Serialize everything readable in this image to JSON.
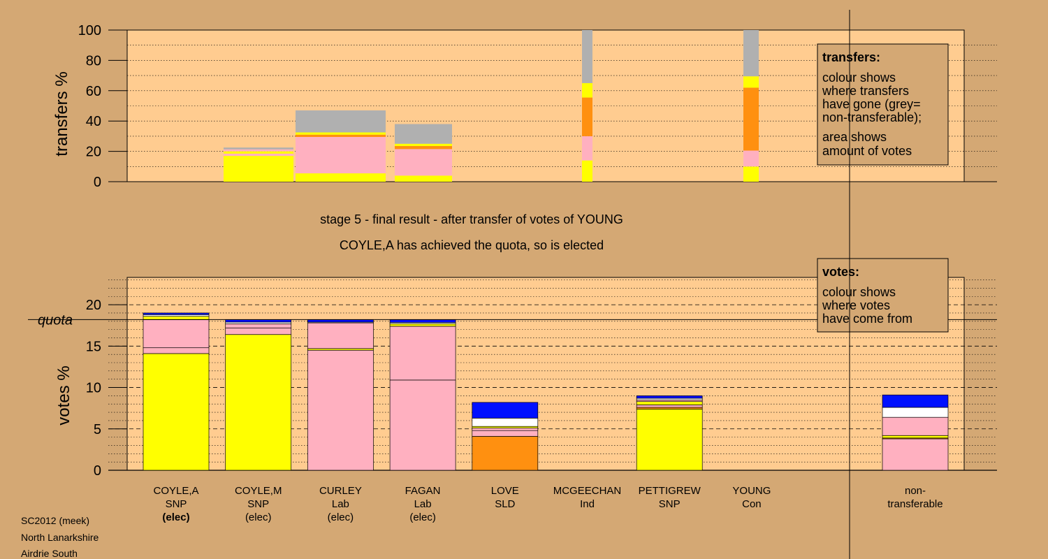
{
  "colors": {
    "background": "#d4a874",
    "plot_background": "#ffcc90",
    "SNP": "#ffff00",
    "Lab": "#ffb0c0",
    "SLD": "#ff9010",
    "Ind": "#ffffff",
    "Con": "#0010ff",
    "non_transferable": "#b0b0b0"
  },
  "caption": {
    "stage_line": "stage 5 - final result - after transfer of votes of YOUNG",
    "result_line": "COYLE,A has achieved the quota, so is elected"
  },
  "footer": {
    "line1": "SC2012 (meek)",
    "line2": "North Lanarkshire",
    "line3": "Airdrie South"
  },
  "legend_transfers": {
    "title": "transfers:",
    "lines": [
      "colour shows",
      "where transfers",
      "have gone (grey=",
      "non-transferable);",
      "area shows",
      "amount of votes"
    ]
  },
  "legend_votes": {
    "title": "votes:",
    "lines": [
      "colour shows",
      "where votes",
      "have come from"
    ]
  },
  "quota_label": "quota",
  "chart_data": [
    {
      "type": "bar",
      "subtype": "stacked-variable-width",
      "name": "transfers",
      "ylabel": "transfers %",
      "ylim": [
        0,
        100
      ],
      "yticks": [
        0,
        20,
        40,
        60,
        80,
        100
      ],
      "grid": true,
      "bars": [
        {
          "source": "COYLE,M",
          "segments": [
            {
              "party": "SNP",
              "from": 0,
              "to": 17
            },
            {
              "party": "Lab",
              "from": 17,
              "to": 18.5
            },
            {
              "party": "SNP",
              "from": 18.5,
              "to": 20
            },
            {
              "party": "Lab",
              "from": 20,
              "to": 21.3
            },
            {
              "party": "non_transferable",
              "from": 21.3,
              "to": 22.5
            }
          ]
        },
        {
          "source": "CURLEY",
          "segments": [
            {
              "party": "SNP",
              "from": 0,
              "to": 5.5
            },
            {
              "party": "Lab",
              "from": 5.5,
              "to": 29.5
            },
            {
              "party": "SLD",
              "from": 29.5,
              "to": 31
            },
            {
              "party": "SNP",
              "from": 31,
              "to": 32.5
            },
            {
              "party": "non_transferable",
              "from": 32.5,
              "to": 47
            }
          ]
        },
        {
          "source": "FAGAN",
          "segments": [
            {
              "party": "SNP",
              "from": 0,
              "to": 4
            },
            {
              "party": "Lab",
              "from": 4,
              "to": 21.5
            },
            {
              "party": "SLD",
              "from": 21.5,
              "to": 23.5
            },
            {
              "party": "SNP",
              "from": 23.5,
              "to": 25
            },
            {
              "party": "non_transferable",
              "from": 25,
              "to": 38
            }
          ]
        },
        {
          "source": "MCGEECHAN",
          "segments": [
            {
              "party": "SNP",
              "from": 0,
              "to": 14
            },
            {
              "party": "Lab",
              "from": 14,
              "to": 30
            },
            {
              "party": "SLD",
              "from": 30,
              "to": 55.5
            },
            {
              "party": "SNP",
              "from": 55.5,
              "to": 65
            },
            {
              "party": "non_transferable",
              "from": 65,
              "to": 100
            }
          ]
        },
        {
          "source": "YOUNG",
          "segments": [
            {
              "party": "SNP",
              "from": 0,
              "to": 10
            },
            {
              "party": "Lab",
              "from": 10,
              "to": 20.5
            },
            {
              "party": "SLD",
              "from": 20.5,
              "to": 62
            },
            {
              "party": "SNP",
              "from": 62,
              "to": 69.5
            },
            {
              "party": "non_transferable",
              "from": 69.5,
              "to": 100
            }
          ]
        }
      ]
    },
    {
      "type": "bar",
      "subtype": "stacked",
      "name": "votes",
      "ylabel": "votes %",
      "ylim": [
        0,
        23.3
      ],
      "yticks": [
        0,
        5,
        10,
        15,
        20
      ],
      "quota": 18.2,
      "grid": true,
      "candidates": [
        {
          "name": "COYLE,A",
          "party": "SNP",
          "status": "(elec)",
          "status_bold": true,
          "segments": [
            {
              "party": "SNP",
              "from": 0,
              "to": 14.1
            },
            {
              "party": "Lab",
              "from": 14.1,
              "to": 14.8
            },
            {
              "party": "Lab",
              "from": 14.8,
              "to": 18.2
            },
            {
              "party": "SNP",
              "from": 18.2,
              "to": 18.6
            },
            {
              "party": "Ind",
              "from": 18.6,
              "to": 18.8
            },
            {
              "party": "Con",
              "from": 18.8,
              "to": 19.0
            }
          ]
        },
        {
          "name": "COYLE,M",
          "party": "SNP",
          "status": "(elec)",
          "status_bold": false,
          "segments": [
            {
              "party": "SNP",
              "from": 0,
              "to": 16.4
            },
            {
              "party": "Lab",
              "from": 16.4,
              "to": 17.2
            },
            {
              "party": "Lab",
              "from": 17.2,
              "to": 17.7
            },
            {
              "party": "Ind",
              "from": 17.7,
              "to": 17.9
            },
            {
              "party": "Con",
              "from": 17.9,
              "to": 18.2
            }
          ]
        },
        {
          "name": "CURLEY",
          "party": "Lab",
          "status": "(elec)",
          "status_bold": false,
          "segments": [
            {
              "party": "Lab",
              "from": 0,
              "to": 14.5
            },
            {
              "party": "SNP",
              "from": 14.5,
              "to": 14.7
            },
            {
              "party": "Lab",
              "from": 14.7,
              "to": 17.8
            },
            {
              "party": "Ind",
              "from": 17.8,
              "to": 17.9
            },
            {
              "party": "Con",
              "from": 17.9,
              "to": 18.2
            }
          ]
        },
        {
          "name": "FAGAN",
          "party": "Lab",
          "status": "(elec)",
          "status_bold": false,
          "segments": [
            {
              "party": "Lab",
              "from": 0,
              "to": 10.9
            },
            {
              "party": "Lab",
              "from": 10.9,
              "to": 17.4
            },
            {
              "party": "SNP",
              "from": 17.4,
              "to": 17.7
            },
            {
              "party": "Ind",
              "from": 17.7,
              "to": 17.85
            },
            {
              "party": "Con",
              "from": 17.85,
              "to": 18.2
            }
          ]
        },
        {
          "name": "LOVE",
          "party": "SLD",
          "status": "",
          "status_bold": false,
          "segments": [
            {
              "party": "SLD",
              "from": 0,
              "to": 4.1
            },
            {
              "party": "Lab",
              "from": 4.1,
              "to": 4.8
            },
            {
              "party": "Lab",
              "from": 4.8,
              "to": 5.1
            },
            {
              "party": "SNP",
              "from": 5.1,
              "to": 5.3
            },
            {
              "party": "Ind",
              "from": 5.3,
              "to": 6.3
            },
            {
              "party": "Con",
              "from": 6.3,
              "to": 8.2
            }
          ]
        },
        {
          "name": "MCGEECHAN",
          "party": "Ind",
          "status": "",
          "status_bold": false,
          "segments": []
        },
        {
          "name": "PETTIGREW",
          "party": "SNP",
          "status": "",
          "status_bold": false,
          "segments": [
            {
              "party": "SNP",
              "from": 0,
              "to": 7.4
            },
            {
              "party": "SLD",
              "from": 7.4,
              "to": 7.6
            },
            {
              "party": "Lab",
              "from": 7.6,
              "to": 7.9
            },
            {
              "party": "SNP",
              "from": 7.9,
              "to": 8.3
            },
            {
              "party": "Lab",
              "from": 8.3,
              "to": 8.5
            },
            {
              "party": "Ind",
              "from": 8.5,
              "to": 8.7
            },
            {
              "party": "Con",
              "from": 8.7,
              "to": 9.0
            }
          ]
        },
        {
          "name": "YOUNG",
          "party": "Con",
          "status": "",
          "status_bold": false,
          "segments": []
        }
      ],
      "non_transferable": {
        "label_line1": "non-",
        "label_line2": "transferable",
        "segments": [
          {
            "party": "Lab",
            "from": 0,
            "to": 3.8
          },
          {
            "party": "SLD",
            "from": 3.8,
            "to": 3.9
          },
          {
            "party": "SNP",
            "from": 3.9,
            "to": 4.2
          },
          {
            "party": "Lab",
            "from": 4.2,
            "to": 6.4
          },
          {
            "party": "Ind",
            "from": 6.4,
            "to": 7.6
          },
          {
            "party": "Con",
            "from": 7.6,
            "to": 9.1
          }
        ]
      }
    }
  ]
}
